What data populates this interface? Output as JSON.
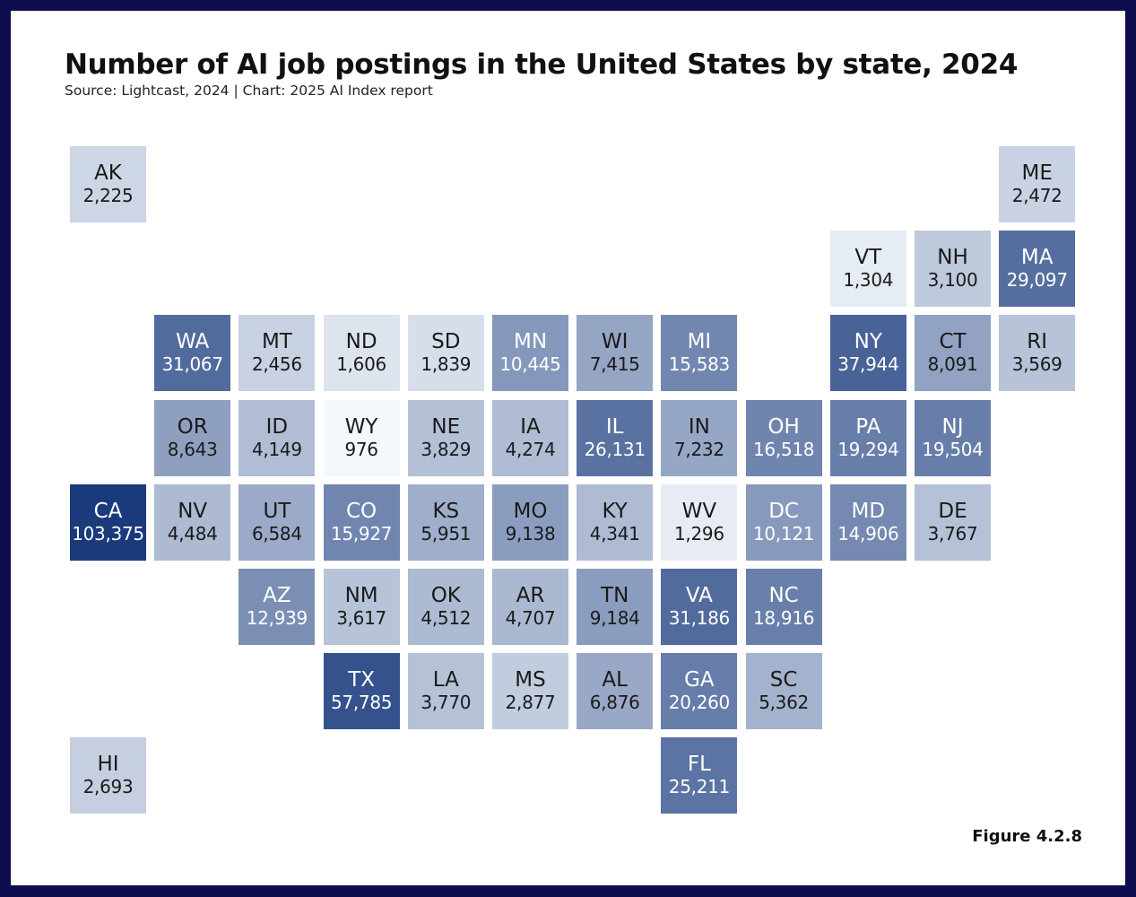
{
  "header": {
    "title": "Number of AI job postings in the United States by state, 2024",
    "subtitle": "Source: Lightcast, 2024 | Chart: 2025 AI Index report"
  },
  "footer": {
    "figure_label": "Figure 4.2.8"
  },
  "chart_data": {
    "type": "heatmap",
    "colors": {
      "low": "#f4f8fc",
      "high": "#1a3a7c",
      "text_dark": "#1a1a1a",
      "text_light": "#ffffff"
    },
    "tiles": [
      {
        "state": "AK",
        "label": "2,225",
        "value": 2225,
        "col": 0,
        "row": 0
      },
      {
        "state": "ME",
        "label": "2,472",
        "value": 2472,
        "col": 11,
        "row": 0
      },
      {
        "state": "VT",
        "label": "1,304",
        "value": 1304,
        "col": 9,
        "row": 1
      },
      {
        "state": "NH",
        "label": "3,100",
        "value": 3100,
        "col": 10,
        "row": 1
      },
      {
        "state": "MA",
        "label": "29,097",
        "value": 29097,
        "col": 11,
        "row": 1
      },
      {
        "state": "WA",
        "label": "31,067",
        "value": 31067,
        "col": 1,
        "row": 2
      },
      {
        "state": "MT",
        "label": "2,456",
        "value": 2456,
        "col": 2,
        "row": 2
      },
      {
        "state": "ND",
        "label": "1,606",
        "value": 1606,
        "col": 3,
        "row": 2
      },
      {
        "state": "SD",
        "label": "1,839",
        "value": 1839,
        "col": 4,
        "row": 2
      },
      {
        "state": "MN",
        "label": "10,445",
        "value": 10445,
        "col": 5,
        "row": 2
      },
      {
        "state": "WI",
        "label": "7,415",
        "value": 7415,
        "col": 6,
        "row": 2
      },
      {
        "state": "MI",
        "label": "15,583",
        "value": 15583,
        "col": 7,
        "row": 2
      },
      {
        "state": "NY",
        "label": "37,944",
        "value": 37944,
        "col": 9,
        "row": 2
      },
      {
        "state": "CT",
        "label": "8,091",
        "value": 8091,
        "col": 10,
        "row": 2
      },
      {
        "state": "RI",
        "label": "3,569",
        "value": 3569,
        "col": 11,
        "row": 2
      },
      {
        "state": "OR",
        "label": "8,643",
        "value": 8643,
        "col": 1,
        "row": 3
      },
      {
        "state": "ID",
        "label": "4,149",
        "value": 4149,
        "col": 2,
        "row": 3
      },
      {
        "state": "WY",
        "label": "976",
        "value": 976,
        "col": 3,
        "row": 3
      },
      {
        "state": "NE",
        "label": "3,829",
        "value": 3829,
        "col": 4,
        "row": 3
      },
      {
        "state": "IA",
        "label": "4,274",
        "value": 4274,
        "col": 5,
        "row": 3
      },
      {
        "state": "IL",
        "label": "26,131",
        "value": 26131,
        "col": 6,
        "row": 3
      },
      {
        "state": "IN",
        "label": "7,232",
        "value": 7232,
        "col": 7,
        "row": 3
      },
      {
        "state": "OH",
        "label": "16,518",
        "value": 16518,
        "col": 8,
        "row": 3
      },
      {
        "state": "PA",
        "label": "19,294",
        "value": 19294,
        "col": 9,
        "row": 3
      },
      {
        "state": "NJ",
        "label": "19,504",
        "value": 19504,
        "col": 10,
        "row": 3
      },
      {
        "state": "CA",
        "label": "103,375",
        "value": 103375,
        "col": 0,
        "row": 4
      },
      {
        "state": "NV",
        "label": "4,484",
        "value": 4484,
        "col": 1,
        "row": 4
      },
      {
        "state": "UT",
        "label": "6,584",
        "value": 6584,
        "col": 2,
        "row": 4
      },
      {
        "state": "CO",
        "label": "15,927",
        "value": 15927,
        "col": 3,
        "row": 4
      },
      {
        "state": "KS",
        "label": "5,951",
        "value": 5951,
        "col": 4,
        "row": 4
      },
      {
        "state": "MO",
        "label": "9,138",
        "value": 9138,
        "col": 5,
        "row": 4
      },
      {
        "state": "KY",
        "label": "4,341",
        "value": 4341,
        "col": 6,
        "row": 4
      },
      {
        "state": "WV",
        "label": "1,296",
        "value": 1296,
        "col": 7,
        "row": 4
      },
      {
        "state": "DC",
        "label": "10,121",
        "value": 10121,
        "col": 8,
        "row": 4
      },
      {
        "state": "MD",
        "label": "14,906",
        "value": 14906,
        "col": 9,
        "row": 4
      },
      {
        "state": "DE",
        "label": "3,767",
        "value": 3767,
        "col": 10,
        "row": 4
      },
      {
        "state": "AZ",
        "label": "12,939",
        "value": 12939,
        "col": 2,
        "row": 5
      },
      {
        "state": "NM",
        "label": "3,617",
        "value": 3617,
        "col": 3,
        "row": 5
      },
      {
        "state": "OK",
        "label": "4,512",
        "value": 4512,
        "col": 4,
        "row": 5
      },
      {
        "state": "AR",
        "label": "4,707",
        "value": 4707,
        "col": 5,
        "row": 5
      },
      {
        "state": "TN",
        "label": "9,184",
        "value": 9184,
        "col": 6,
        "row": 5
      },
      {
        "state": "VA",
        "label": "31,186",
        "value": 31186,
        "col": 7,
        "row": 5
      },
      {
        "state": "NC",
        "label": "18,916",
        "value": 18916,
        "col": 8,
        "row": 5
      },
      {
        "state": "TX",
        "label": "57,785",
        "value": 57785,
        "col": 3,
        "row": 6
      },
      {
        "state": "LA",
        "label": "3,770",
        "value": 3770,
        "col": 4,
        "row": 6
      },
      {
        "state": "MS",
        "label": "2,877",
        "value": 2877,
        "col": 5,
        "row": 6
      },
      {
        "state": "AL",
        "label": "6,876",
        "value": 6876,
        "col": 6,
        "row": 6
      },
      {
        "state": "GA",
        "label": "20,260",
        "value": 20260,
        "col": 7,
        "row": 6
      },
      {
        "state": "SC",
        "label": "5,362",
        "value": 5362,
        "col": 8,
        "row": 6
      },
      {
        "state": "HI",
        "label": "2,693",
        "value": 2693,
        "col": 0,
        "row": 7
      },
      {
        "state": "FL",
        "label": "25,211",
        "value": 25211,
        "col": 7,
        "row": 7
      }
    ]
  }
}
